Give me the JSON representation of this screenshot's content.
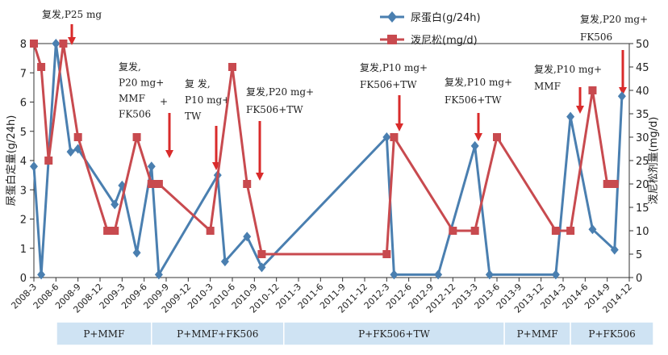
{
  "chart_data": {
    "type": "line",
    "x": [
      "2008-3",
      "2008-4",
      "2008-6",
      "2008-8",
      "2008-10",
      "2009-2",
      "2009-3",
      "2009-5",
      "2009-7",
      "2009-9",
      "2010-5",
      "2010-6",
      "2010-9",
      "2010-11",
      "2012-3",
      "2012-4",
      "2012-12",
      "2013-3",
      "2013-5",
      "2013-9",
      "2014-2",
      "2014-5",
      "2014-8",
      "2014-10",
      "2014-12"
    ],
    "xlim": [
      "2008-3",
      "2014-12"
    ],
    "x_ticks": [
      "2008-3",
      "2008-6",
      "2008-9",
      "2008-12",
      "2009-3",
      "2009-6",
      "2009-9",
      "2009-12",
      "2010-3",
      "2010-6",
      "2010-9",
      "2010-12",
      "2011-3",
      "2011-6",
      "2011-9",
      "2011-12",
      "2012-3",
      "2012-6",
      "2012-9",
      "2012-12",
      "2013-3",
      "2013-6",
      "2013-9",
      "2013-12",
      "2014-3",
      "2014-6",
      "2014-9",
      "2014-12"
    ],
    "series": [
      {
        "name": "尿蛋白(g/24h)",
        "axis": "left",
        "color": "#4a7fb0",
        "marker": "diamond",
        "points": [
          [
            "2008-3",
            3.8
          ],
          [
            "2008-4",
            0.1
          ],
          [
            "2008-6",
            8.0
          ],
          [
            "2008-8",
            4.3
          ],
          [
            "2008-9",
            4.4
          ],
          [
            "2009-2",
            2.5
          ],
          [
            "2009-3",
            3.15
          ],
          [
            "2009-5",
            0.85
          ],
          [
            "2009-7",
            3.8
          ],
          [
            "2009-8",
            0.1
          ],
          [
            "2010-4",
            3.5
          ],
          [
            "2010-5",
            0.55
          ],
          [
            "2010-8",
            1.4
          ],
          [
            "2010-10",
            0.35
          ],
          [
            "2012-3",
            4.8
          ],
          [
            "2012-4",
            0.1
          ],
          [
            "2012-10",
            0.1
          ],
          [
            "2013-3",
            4.5
          ],
          [
            "2013-5",
            0.1
          ],
          [
            "2014-2",
            0.1
          ],
          [
            "2014-4",
            5.5
          ],
          [
            "2014-7",
            1.65
          ],
          [
            "2014-10",
            0.95
          ],
          [
            "2014-11",
            6.2
          ]
        ]
      },
      {
        "name": "泼尼松(mg/d)",
        "axis": "right",
        "color": "#c84a4f",
        "marker": "square",
        "points": [
          [
            "2008-3",
            50
          ],
          [
            "2008-4",
            45
          ],
          [
            "2008-5",
            25
          ],
          [
            "2008-7",
            50
          ],
          [
            "2008-9",
            30
          ],
          [
            "2009-1",
            10
          ],
          [
            "2009-2",
            10
          ],
          [
            "2009-5",
            30
          ],
          [
            "2009-7",
            20
          ],
          [
            "2009-8",
            20
          ],
          [
            "2010-3",
            10
          ],
          [
            "2010-6",
            45
          ],
          [
            "2010-8",
            20
          ],
          [
            "2010-10",
            5
          ],
          [
            "2012-3",
            5
          ],
          [
            "2012-4",
            30
          ],
          [
            "2012-12",
            10
          ],
          [
            "2013-3",
            10
          ],
          [
            "2013-6",
            30
          ],
          [
            "2014-2",
            10
          ],
          [
            "2014-4",
            10
          ],
          [
            "2014-7",
            40
          ],
          [
            "2014-9",
            20
          ],
          [
            "2014-10",
            20
          ]
        ]
      }
    ],
    "y_left": {
      "label": "尿蛋白定量(g/24h)",
      "lim": [
        0,
        8
      ],
      "ticks": [
        "0",
        "1",
        "2",
        "3",
        "4",
        "5",
        "6",
        "7",
        "8"
      ]
    },
    "y_right": {
      "label": "泼尼松剂量(mg/d)",
      "lim": [
        0,
        50
      ],
      "ticks": [
        "0",
        "5",
        "10",
        "15",
        "20",
        "25",
        "30",
        "35",
        "40",
        "45",
        "50"
      ]
    },
    "legend_position": "top-center",
    "annotations": [
      {
        "lines": [
          "复发,P25 mg"
        ],
        "month": "2008-6"
      },
      {
        "lines": [
          "复发,",
          "P20 mg+",
          "MMF",
          "FK506"
        ],
        "plus_sign": "+",
        "month": "2009-8"
      },
      {
        "lines": [
          "复 发,",
          "P10 mg+",
          "TW"
        ],
        "month": "2010-1"
      },
      {
        "lines": [
          "复发,P20 mg+",
          "FK506+TW"
        ],
        "month": "2010-8"
      },
      {
        "lines": [
          "复发,P10 mg+",
          "FK506+TW"
        ],
        "month": "2012-3"
      },
      {
        "lines": [
          "复发,P10 mg+",
          "FK506+TW"
        ],
        "month": "2013-3"
      },
      {
        "lines": [
          "复发,P10 mg+",
          "MMF"
        ],
        "month": "2014-4"
      },
      {
        "lines": [
          "复发,P20 mg+",
          "FK506"
        ],
        "month": "2014-11"
      }
    ],
    "regimens": [
      {
        "label": "P+MMF",
        "from": "2008-3",
        "to": "2009-7"
      },
      {
        "label": "P+MMF+FK506",
        "from": "2009-7",
        "to": "2011-1"
      },
      {
        "label": "P+FK506+TW",
        "from": "2011-1",
        "to": "2013-7"
      },
      {
        "label": "P+MMF",
        "from": "2013-7",
        "to": "2014-4"
      },
      {
        "label": "P+FK506",
        "from": "2014-4",
        "to": "2014-12"
      }
    ]
  }
}
